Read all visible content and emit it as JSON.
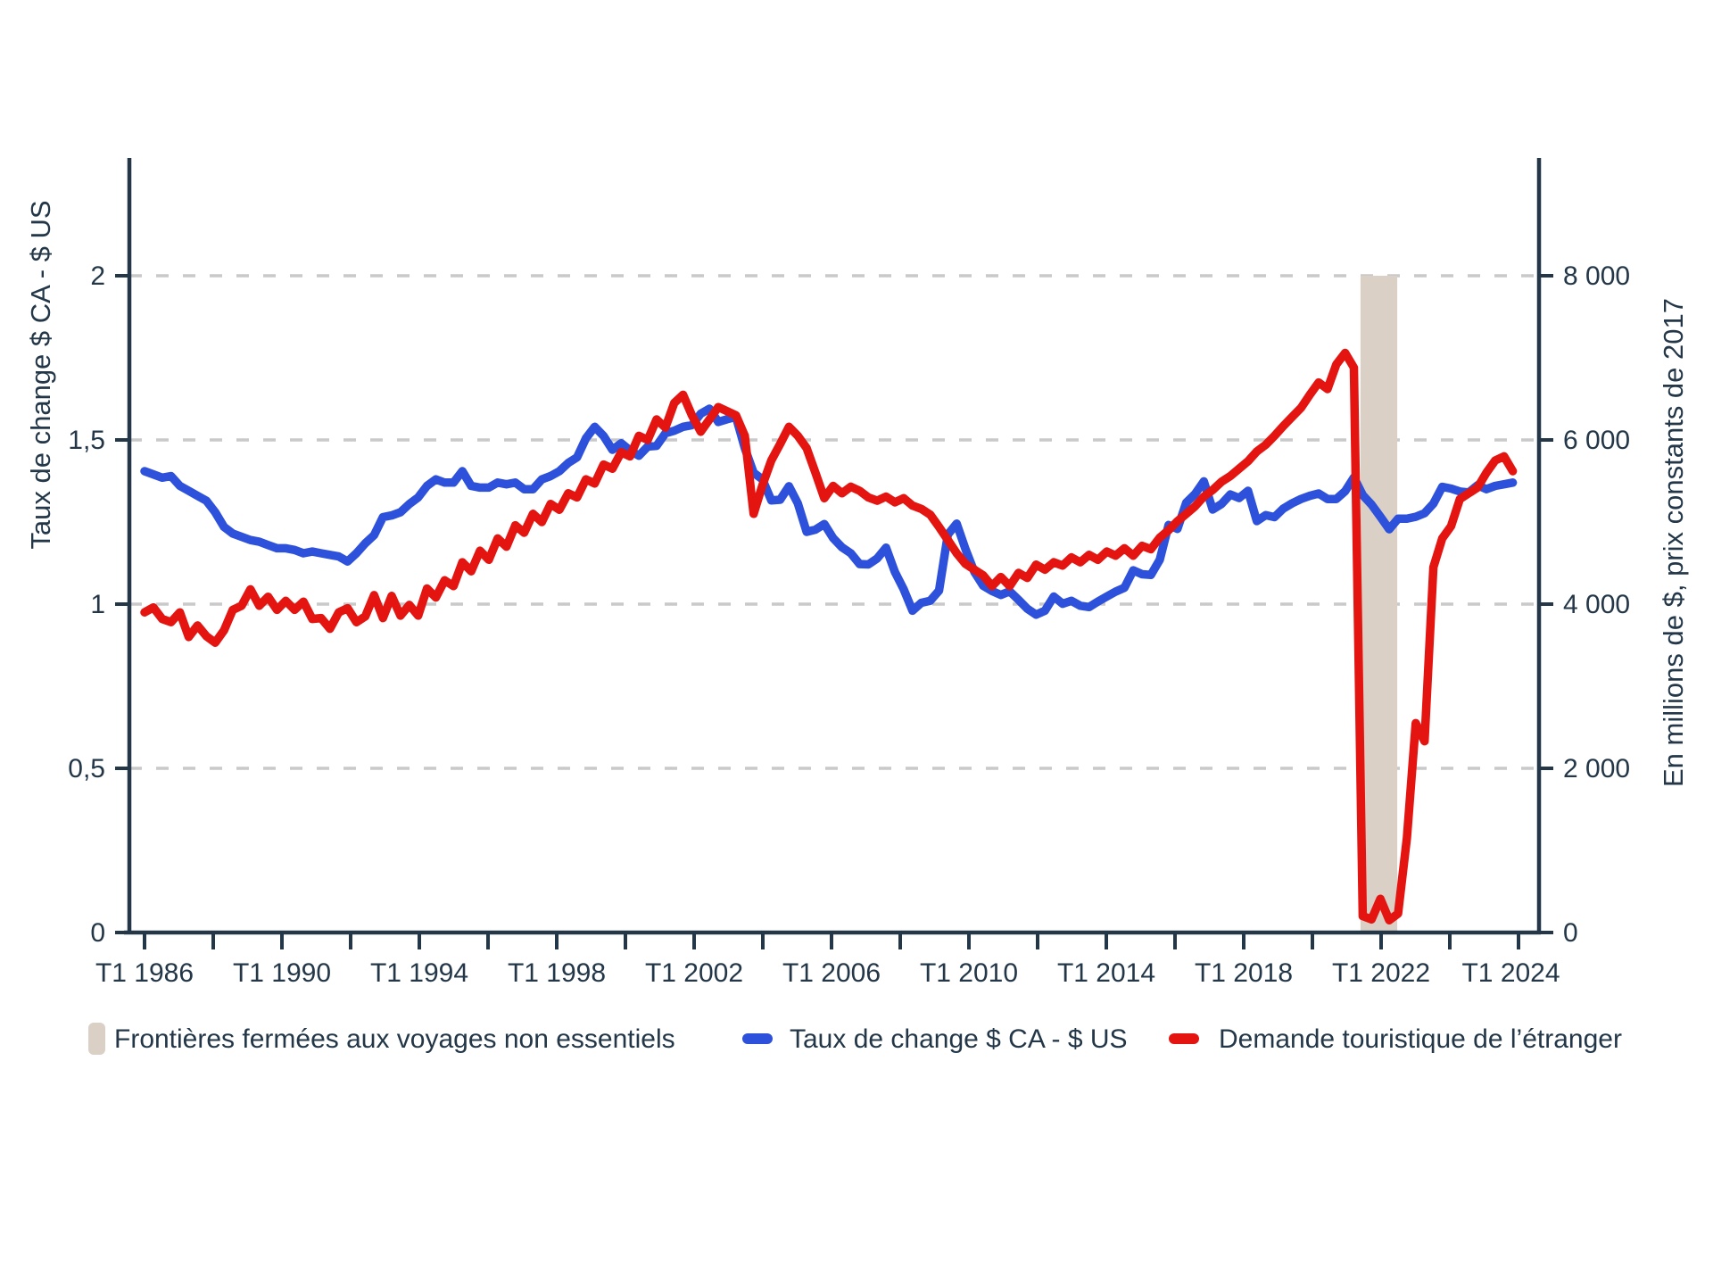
{
  "colors": {
    "background": "#FFFFFF",
    "axis_ink": "#233748",
    "grid": "#C9C9C9",
    "blue_line": "#2E51DB",
    "red_line": "#E41411",
    "band_fill": "#DBD0C5"
  },
  "chart_data": {
    "type": "line",
    "title": "",
    "grid": "horizontal-dashed",
    "legend_position": "bottom",
    "left_axis": {
      "label": "Taux de change $ CA - $ US",
      "tick_labels": [
        "0",
        "0,5",
        "1",
        "1,5",
        "2"
      ],
      "tick_values": [
        0,
        0.5,
        1,
        1.5,
        2
      ],
      "range": [
        0,
        2.36
      ]
    },
    "right_axis": {
      "label": "En millions de $, prix constants de 2017",
      "tick_labels": [
        "0",
        "2 000",
        "4 000",
        "6 000",
        "8 000"
      ],
      "tick_values": [
        0,
        2000,
        4000,
        6000,
        8000
      ],
      "range": [
        0,
        9435
      ]
    },
    "x_axis": {
      "unit": "quarter",
      "first_tick_year": 1986,
      "last_tick_year": 2026,
      "tick_step_years": 2,
      "labels": [
        {
          "text": "T1 1986",
          "t": 1986
        },
        {
          "text": "T1 1990",
          "t": 1990
        },
        {
          "text": "T1 1994",
          "t": 1994
        },
        {
          "text": "T1 1998",
          "t": 1998
        },
        {
          "text": "T1 2002",
          "t": 2002
        },
        {
          "text": "T1 2006",
          "t": 2006
        },
        {
          "text": "T1 2010",
          "t": 2010
        },
        {
          "text": "T1 2014",
          "t": 2014
        },
        {
          "text": "T1 2018",
          "t": 2018
        },
        {
          "text": "T1 2022",
          "t": 2022
        },
        {
          "text": "T1 2024",
          "t": 2025.78
        }
      ]
    },
    "band": {
      "label": "Frontières fermées aux voyages non essentiels",
      "t_start": 2021.4,
      "t_end": 2022.47,
      "top_value_left_axis": 2.0,
      "color": "#DBD0C5"
    },
    "legend": [
      {
        "label": "Frontières fermées aux voyages non essentiels",
        "swatch": "band",
        "color": "#DBD0C5"
      },
      {
        "label": "Taux de change $ CA - $ US",
        "swatch": "line",
        "color": "#2E51DB"
      },
      {
        "label": "Demande touristique de l’étranger",
        "swatch": "line",
        "color": "#E41411"
      }
    ],
    "series": [
      {
        "name": "Taux de change $ CA - $ US",
        "axis": "left",
        "color": "#2E51DB",
        "t_start": 1986,
        "t_step": 0.257,
        "values": [
          1.405,
          1.395,
          1.385,
          1.39,
          1.36,
          1.345,
          1.33,
          1.315,
          1.28,
          1.235,
          1.215,
          1.205,
          1.195,
          1.19,
          1.18,
          1.17,
          1.17,
          1.165,
          1.155,
          1.16,
          1.155,
          1.15,
          1.145,
          1.13,
          1.155,
          1.185,
          1.21,
          1.265,
          1.27,
          1.28,
          1.305,
          1.325,
          1.36,
          1.38,
          1.37,
          1.37,
          1.405,
          1.36,
          1.355,
          1.355,
          1.37,
          1.365,
          1.37,
          1.35,
          1.35,
          1.38,
          1.39,
          1.405,
          1.43,
          1.447,
          1.505,
          1.54,
          1.512,
          1.47,
          1.49,
          1.468,
          1.452,
          1.48,
          1.482,
          1.52,
          1.528,
          1.54,
          1.545,
          1.58,
          1.595,
          1.555,
          1.563,
          1.57,
          1.475,
          1.4,
          1.38,
          1.316,
          1.318,
          1.359,
          1.307,
          1.22,
          1.227,
          1.244,
          1.201,
          1.173,
          1.155,
          1.122,
          1.121,
          1.139,
          1.172,
          1.098,
          1.045,
          0.98,
          1.004,
          1.01,
          1.041,
          1.212,
          1.245,
          1.167,
          1.098,
          1.056,
          1.04,
          1.028,
          1.039,
          1.013,
          0.986,
          0.968,
          0.98,
          1.023,
          1.001,
          1.01,
          0.995,
          0.991,
          1.008,
          1.023,
          1.038,
          1.05,
          1.103,
          1.091,
          1.089,
          1.135,
          1.241,
          1.229,
          1.309,
          1.335,
          1.374,
          1.288,
          1.305,
          1.334,
          1.323,
          1.345,
          1.253,
          1.271,
          1.265,
          1.291,
          1.307,
          1.32,
          1.33,
          1.337,
          1.32,
          1.32,
          1.344,
          1.386,
          1.332,
          1.303,
          1.266,
          1.228,
          1.26,
          1.26,
          1.266,
          1.277,
          1.306,
          1.357,
          1.352,
          1.343,
          1.34,
          1.362,
          1.35,
          1.36,
          1.365,
          1.37
        ]
      },
      {
        "name": "Demande touristique de l’étranger",
        "axis": "right",
        "color": "#E41411",
        "t_start": 1986,
        "t_step": 0.257,
        "values": [
          3900,
          3960,
          3820,
          3780,
          3900,
          3600,
          3740,
          3610,
          3530,
          3680,
          3930,
          3980,
          4180,
          3980,
          4090,
          3930,
          4040,
          3930,
          4030,
          3820,
          3830,
          3700,
          3900,
          3950,
          3780,
          3850,
          4110,
          3830,
          4100,
          3860,
          3990,
          3860,
          4190,
          4080,
          4290,
          4220,
          4510,
          4400,
          4650,
          4540,
          4800,
          4700,
          4960,
          4870,
          5100,
          5000,
          5220,
          5150,
          5350,
          5300,
          5520,
          5470,
          5700,
          5650,
          5850,
          5800,
          6050,
          6000,
          6250,
          6150,
          6450,
          6550,
          6300,
          6100,
          6250,
          6400,
          6350,
          6300,
          6050,
          5100,
          5450,
          5750,
          5950,
          6160,
          6050,
          5900,
          5600,
          5290,
          5440,
          5350,
          5430,
          5380,
          5300,
          5260,
          5310,
          5240,
          5290,
          5200,
          5160,
          5090,
          4940,
          4780,
          4620,
          4490,
          4420,
          4350,
          4220,
          4330,
          4220,
          4380,
          4320,
          4480,
          4420,
          4510,
          4470,
          4570,
          4510,
          4600,
          4540,
          4640,
          4590,
          4680,
          4590,
          4710,
          4670,
          4810,
          4900,
          5010,
          5100,
          5190,
          5310,
          5390,
          5490,
          5560,
          5650,
          5740,
          5860,
          5940,
          6050,
          6170,
          6280,
          6390,
          6550,
          6700,
          6620,
          6920,
          7060,
          6880,
          200,
          160,
          410,
          150,
          230,
          1150,
          2550,
          2330,
          4450,
          4800,
          4950,
          5280,
          5350,
          5420,
          5600,
          5750,
          5800,
          5620
        ]
      }
    ]
  }
}
